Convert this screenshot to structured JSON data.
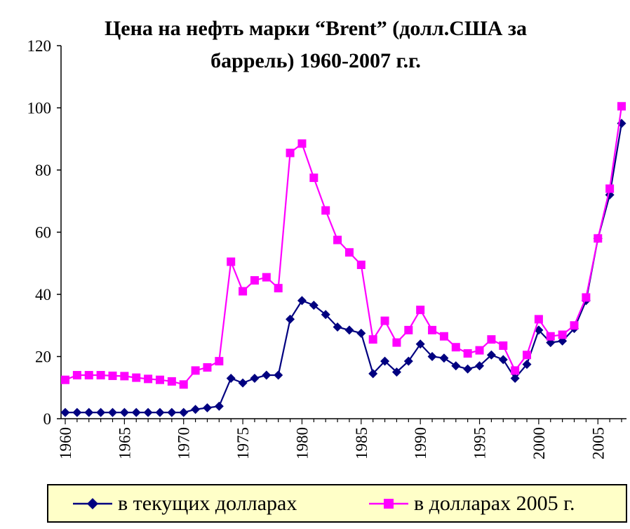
{
  "chart_data": {
    "type": "line",
    "title": "Цена на нефть марки “Brent” (долл.США за баррель) 1960-2007 г.г.",
    "title_lines": [
      "Цена на нефть марки “Brent” (долл.США за",
      "баррель) 1960-2007 г.г."
    ],
    "xlabel": "",
    "ylabel": "",
    "ylim": [
      0,
      120
    ],
    "y_ticks": [
      0,
      20,
      40,
      60,
      80,
      100,
      120
    ],
    "x_range": [
      1960,
      2007
    ],
    "x_ticks": [
      1960,
      1965,
      1970,
      1975,
      1980,
      1985,
      1990,
      1995,
      2000,
      2005
    ],
    "grid": false,
    "legend_position": "bottom",
    "x": [
      1960,
      1961,
      1962,
      1963,
      1964,
      1965,
      1966,
      1967,
      1968,
      1969,
      1970,
      1971,
      1972,
      1973,
      1974,
      1975,
      1976,
      1977,
      1978,
      1979,
      1980,
      1981,
      1982,
      1983,
      1984,
      1985,
      1986,
      1987,
      1988,
      1989,
      1990,
      1991,
      1992,
      1993,
      1994,
      1995,
      1996,
      1997,
      1998,
      1999,
      2000,
      2001,
      2002,
      2003,
      2004,
      2005,
      2006,
      2007
    ],
    "series": [
      {
        "name": "в текущих долларах",
        "color": "#000080",
        "marker": "diamond",
        "values": [
          2,
          2,
          2,
          2,
          2,
          2,
          2,
          2,
          2,
          2,
          2,
          3,
          3.5,
          4,
          13,
          11.5,
          13,
          14,
          14,
          32,
          38,
          36.5,
          33.5,
          29.5,
          28.5,
          27.5,
          14.5,
          18.5,
          15,
          18.5,
          24,
          20,
          19.5,
          17,
          16,
          17,
          20.5,
          19,
          13,
          17.5,
          28.5,
          24.5,
          25,
          29,
          38,
          58,
          72,
          95
        ]
      },
      {
        "name": "в долларах 2005 г.",
        "color": "#ff00ff",
        "marker": "square",
        "values": [
          12.5,
          14,
          14,
          14,
          13.8,
          13.7,
          13.2,
          12.8,
          12.5,
          12,
          11,
          15.5,
          16.5,
          18.5,
          50.5,
          41,
          44.5,
          45.5,
          42,
          85.5,
          88.5,
          77.5,
          67,
          57.5,
          53.5,
          49.5,
          25.5,
          31.5,
          24.5,
          28.5,
          35,
          28.5,
          26.5,
          23,
          21,
          22,
          25.5,
          23.5,
          15.5,
          20.5,
          32,
          26.5,
          27,
          30,
          39,
          58,
          74,
          100.5
        ]
      }
    ]
  }
}
